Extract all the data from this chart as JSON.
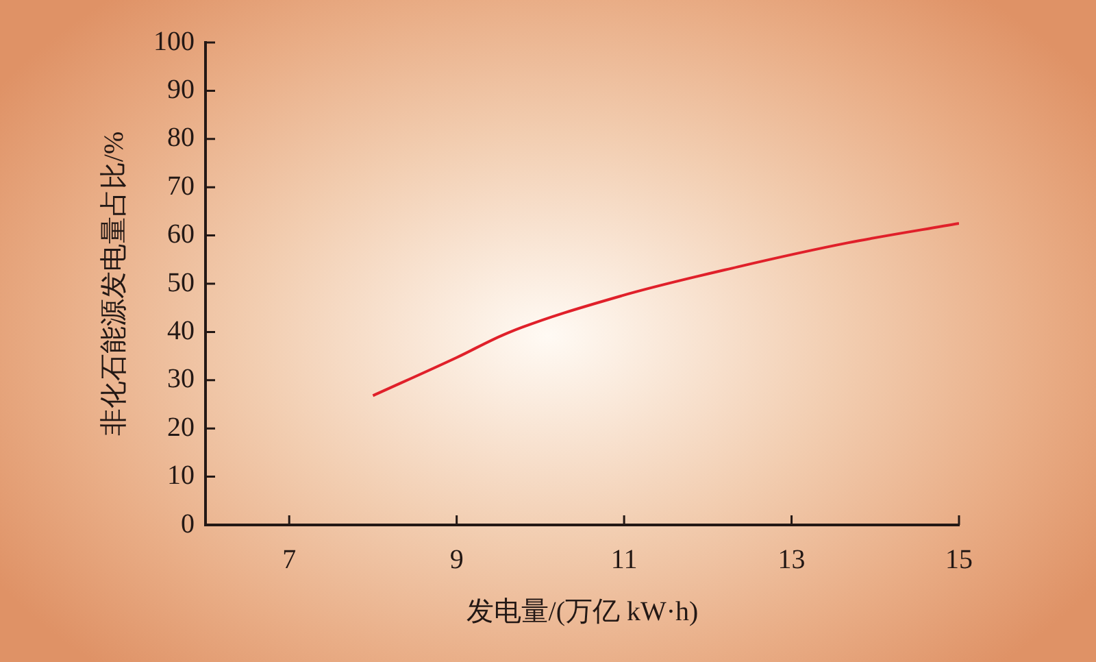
{
  "chart_data": {
    "type": "line",
    "xlabel": "发电量/(万亿 kW·h)",
    "ylabel": "非化石能源发电量占比/%",
    "series": [
      {
        "color": "#e0202a",
        "x": [
          8.0,
          9.0,
          9.61,
          10.97,
          12.36,
          13.68,
          15.0
        ],
        "values": [
          26.8,
          34.7,
          39.8,
          47.5,
          53.5,
          58.5,
          62.5
        ]
      }
    ],
    "xlim": [
      6,
      15
    ],
    "xticks": [
      7,
      9,
      11,
      13,
      15
    ],
    "ylim": [
      0,
      100
    ],
    "yticks": [
      0,
      10,
      20,
      30,
      40,
      50,
      60,
      70,
      80,
      90,
      100
    ],
    "grid": false,
    "legend": false,
    "marker": "none",
    "line_style": "solid"
  }
}
